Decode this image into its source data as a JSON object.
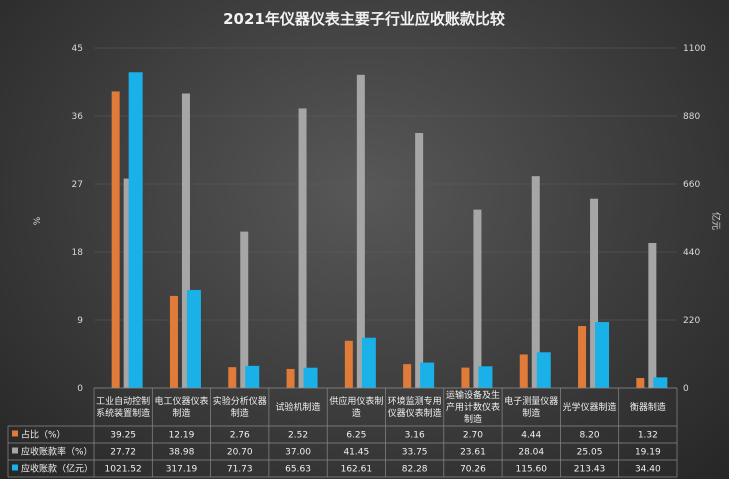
{
  "chart_data": {
    "type": "bar",
    "title": "2021年仪器仪表主要子行业应收账款比较",
    "ylabel_left": "%",
    "ylabel_right": "亿元",
    "ylim_left": [
      0,
      45
    ],
    "yticks_left": [
      0,
      9,
      18,
      27,
      36,
      45
    ],
    "ylim_right": [
      0,
      1100
    ],
    "yticks_right": [
      0,
      220,
      440,
      660,
      880,
      1100
    ],
    "categories": [
      [
        "工业自动控制",
        "系统装置制造"
      ],
      [
        "电工仪器仪表",
        "制造"
      ],
      [
        "实验分析仪器",
        "制造"
      ],
      [
        "试验机制造"
      ],
      [
        "供应用仪表制",
        "造"
      ],
      [
        "环境监测专用",
        "仪器仪表制造"
      ],
      [
        "运输设备及生",
        "产用计数仪表",
        "制造"
      ],
      [
        "电子测量仪器",
        "制造"
      ],
      [
        "光学仪器制造"
      ],
      [
        "衡器制造"
      ]
    ],
    "series": [
      {
        "name": "占比（%）",
        "axis": "left",
        "color": "#e07b39",
        "values": [
          39.25,
          12.19,
          2.76,
          2.52,
          6.25,
          3.16,
          2.7,
          4.44,
          8.2,
          1.32
        ],
        "labels": [
          "39.25",
          "12.19",
          "2.76",
          "2.52",
          "6.25",
          "3.16",
          "2.70",
          "4.44",
          "8.20",
          "1.32"
        ]
      },
      {
        "name": "应收账款率（%）",
        "axis": "left",
        "color": "#a6a6a6",
        "values": [
          27.72,
          38.98,
          20.7,
          37.0,
          41.45,
          33.75,
          23.61,
          28.04,
          25.05,
          19.19
        ],
        "labels": [
          "27.72",
          "38.98",
          "20.70",
          "37.00",
          "41.45",
          "33.75",
          "23.61",
          "28.04",
          "25.05",
          "19.19"
        ]
      },
      {
        "name": "应收账款（亿元）",
        "axis": "right",
        "color": "#1ab0e8",
        "values": [
          1021.52,
          317.19,
          71.73,
          65.63,
          162.61,
          82.28,
          70.26,
          115.6,
          213.43,
          34.4
        ],
        "labels": [
          "1021.52",
          "317.19",
          "71.73",
          "65.63",
          "162.61",
          "82.28",
          "70.26",
          "115.60",
          "213.43",
          "34.40"
        ]
      }
    ]
  }
}
